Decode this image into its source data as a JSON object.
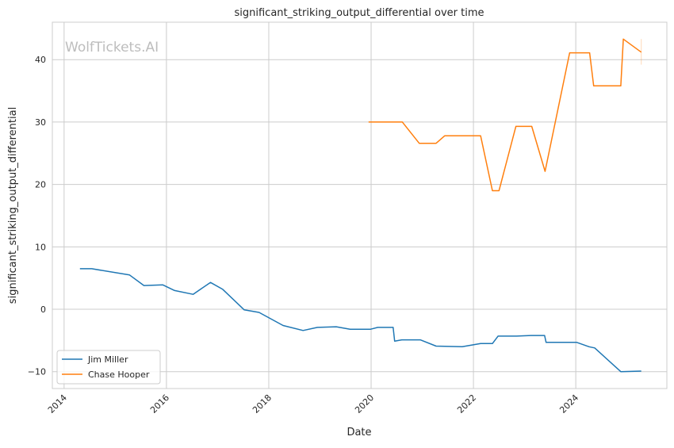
{
  "chart_data": {
    "type": "line",
    "title": "significant_striking_output_differential over time",
    "xlabel": "Date",
    "ylabel": "significant_striking_output_differential",
    "xlim": [
      2013.77,
      2025.78
    ],
    "ylim": [
      -12.7,
      46.0
    ],
    "xticks": [
      2014,
      2016,
      2018,
      2020,
      2022,
      2024
    ],
    "xtick_labels": [
      "2014",
      "2016",
      "2018",
      "2020",
      "2022",
      "2024"
    ],
    "yticks": [
      -10,
      0,
      10,
      20,
      30,
      40
    ],
    "ytick_labels": [
      "−10",
      "0",
      "10",
      "20",
      "30",
      "40"
    ],
    "grid": true,
    "legend_position": "lower-left",
    "watermark": "WolfTickets.AI",
    "series": [
      {
        "name": "Jim Miller",
        "color": "#1f77b4",
        "x": [
          2014.31,
          2014.54,
          2015.28,
          2015.56,
          2015.93,
          2016.16,
          2016.52,
          2016.86,
          2017.1,
          2017.52,
          2017.81,
          2018.28,
          2018.67,
          2018.95,
          2019.32,
          2019.59,
          2019.99,
          2020.13,
          2020.43,
          2020.46,
          2020.6,
          2020.96,
          2021.27,
          2021.78,
          2022.14,
          2022.37,
          2022.48,
          2022.84,
          2023.12,
          2023.39,
          2023.42,
          2024.02,
          2024.26,
          2024.37,
          2024.88,
          2025.28
        ],
        "y": [
          6.5,
          6.5,
          5.5,
          3.8,
          3.9,
          3.0,
          2.4,
          4.3,
          3.2,
          -0.1,
          -0.5,
          -2.6,
          -3.4,
          -2.9,
          -2.8,
          -3.2,
          -3.2,
          -2.9,
          -2.9,
          -5.1,
          -4.9,
          -4.9,
          -5.9,
          -6.0,
          -5.5,
          -5.5,
          -4.3,
          -4.3,
          -4.2,
          -4.2,
          -5.3,
          -5.3,
          -6.0,
          -6.2,
          -10.0,
          -9.9
        ]
      },
      {
        "name": "Chase Hooper",
        "color": "#ff7f0e",
        "x": [
          2019.95,
          2020.61,
          2020.94,
          2021.27,
          2021.44,
          2022.14,
          2022.37,
          2022.5,
          2022.83,
          2023.14,
          2023.4,
          2023.88,
          2024.27,
          2024.35,
          2024.88,
          2024.93,
          2025.28
        ],
        "y": [
          30.0,
          30.0,
          26.6,
          26.6,
          27.8,
          27.8,
          19.0,
          19.0,
          29.3,
          29.3,
          22.1,
          41.1,
          41.1,
          35.8,
          35.8,
          43.3,
          41.2
        ]
      }
    ]
  }
}
